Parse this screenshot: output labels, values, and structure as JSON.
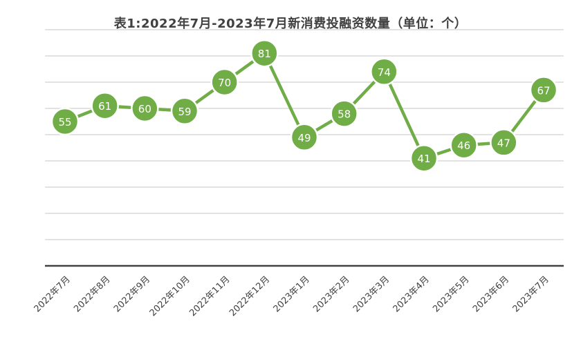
{
  "chart_data": {
    "type": "line",
    "title": "表1:2022年7月-2023年7月新消费投融资数量（单位：个）",
    "xlabel": "",
    "ylabel": "",
    "categories": [
      "2022年7月",
      "2022年8月",
      "2022年9月",
      "2022年10月",
      "2022年11月",
      "2022年12月",
      "2023年1月",
      "2023年2月",
      "2023年3月",
      "2023年4月",
      "2023年5月",
      "2023年6月",
      "2023年7月"
    ],
    "series": [
      {
        "values": [
          55,
          61,
          60,
          59,
          70,
          81,
          49,
          58,
          74,
          41,
          46,
          47,
          67
        ]
      }
    ],
    "ylim": [
      0,
      90
    ],
    "grid": true,
    "legend": "none",
    "color": "#70ad47"
  }
}
